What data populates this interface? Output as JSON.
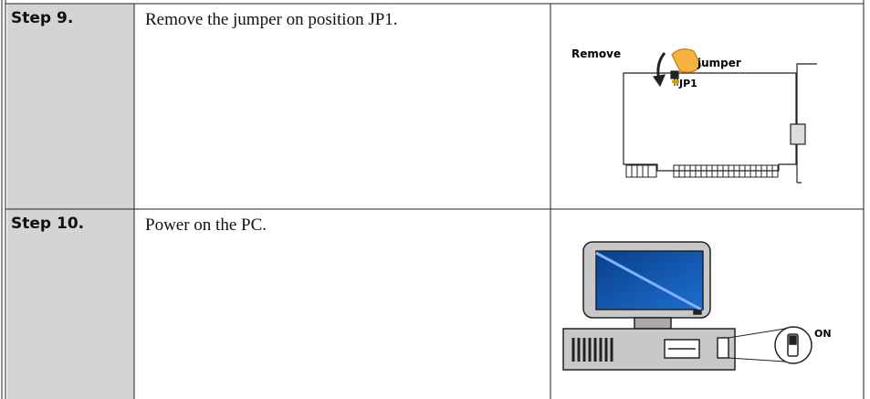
{
  "table": {
    "rows": [
      {
        "step": "Step 9.",
        "description": "Remove the jumper on position JP1.",
        "figure": {
          "labels": [
            "Remove",
            "jumper",
            "JP1"
          ]
        }
      },
      {
        "step": "Step 10.",
        "description": "Power on the PC.",
        "figure": {
          "labels": [
            "ON"
          ]
        }
      }
    ]
  }
}
